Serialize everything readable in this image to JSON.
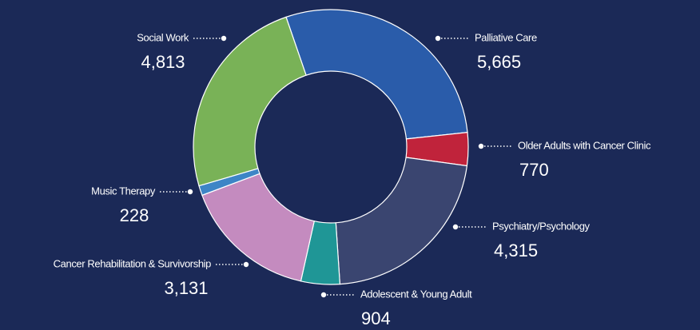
{
  "chart_data": {
    "type": "donut",
    "categories": [
      "Palliative Care",
      "Older Adults with Cancer Clinic",
      "Psychiatry/Psychology",
      "Adolescent & Young Adult",
      "Cancer Rehabilitation & Survivorship",
      "Music Therapy",
      "Social Work"
    ],
    "values": [
      5665,
      770,
      4315,
      904,
      3131,
      228,
      4813
    ],
    "value_labels": [
      "5,665",
      "770",
      "4,315",
      "904",
      "3,131",
      "228",
      "4,813"
    ],
    "colors": [
      "#2a5caa",
      "#c0233b",
      "#3a4570",
      "#1f9696",
      "#c48bbf",
      "#3d85c6",
      "#79b257"
    ]
  }
}
